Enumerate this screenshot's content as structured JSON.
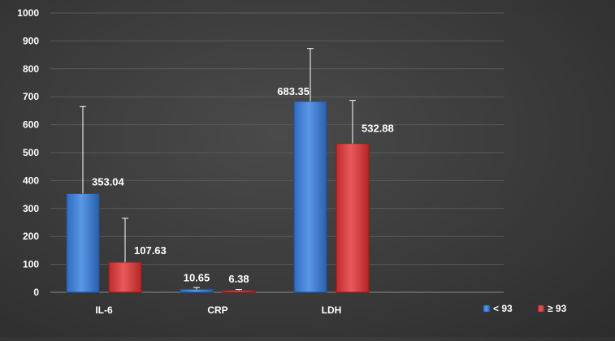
{
  "chart_data": {
    "type": "bar",
    "categories": [
      "IL-6",
      "CRP",
      "LDH"
    ],
    "series": [
      {
        "name": "< 93",
        "color": "#3f7fd4",
        "values": [
          353.04,
          10.65,
          683.35
        ],
        "value_labels": [
          "353.04",
          "10.65",
          "683.35"
        ],
        "error_upper": [
          665,
          17,
          873
        ]
      },
      {
        "name": "≥ 93",
        "color": "#d63b3b",
        "values": [
          107.63,
          6.38,
          532.88
        ],
        "value_labels": [
          "107.63",
          "6.38",
          "532.88"
        ],
        "error_upper": [
          265,
          10,
          687
        ]
      }
    ],
    "ylim": [
      0,
      1000
    ],
    "yticks": [
      "0",
      "100",
      "200",
      "300",
      "400",
      "500",
      "600",
      "700",
      "800",
      "900",
      "1000"
    ],
    "grid": true,
    "legend_position": "bottom-right"
  }
}
